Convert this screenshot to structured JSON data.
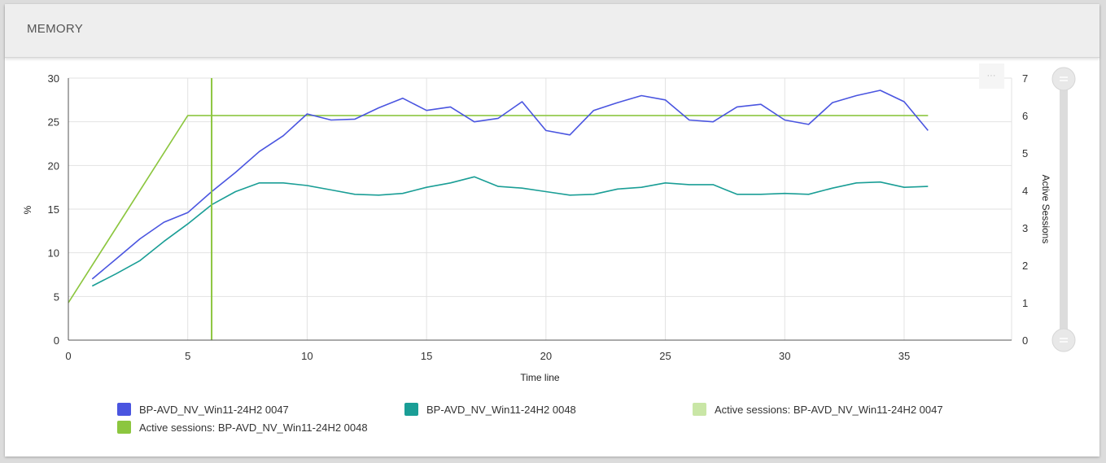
{
  "panel": {
    "title": "MEMORY",
    "menu_glyph": "···"
  },
  "chart_data": {
    "type": "line",
    "xlabel": "Time line",
    "ylabel": "%",
    "y2label": "Active Sessions",
    "xlim": [
      0,
      39.5
    ],
    "ylim": [
      0,
      30
    ],
    "y2lim": [
      0,
      7
    ],
    "xticks": [
      0,
      5,
      10,
      15,
      20,
      25,
      30,
      35
    ],
    "yticks": [
      0,
      5,
      10,
      15,
      20,
      25,
      30
    ],
    "y2ticks": [
      0,
      1,
      2,
      3,
      4,
      5,
      6,
      7
    ],
    "grid": true,
    "legend_position": "bottom",
    "cursor_x": 6,
    "series": [
      {
        "name": "BP-AVD_NV_Win11-24H2 0047",
        "axis": "left",
        "color": "#4a55e0",
        "x": [
          1,
          2,
          3,
          4,
          5,
          6,
          7,
          8,
          9,
          10,
          11,
          12,
          13,
          14,
          15,
          16,
          17,
          18,
          19,
          20,
          21,
          22,
          23,
          24,
          25,
          26,
          27,
          28,
          29,
          30,
          31,
          32,
          33,
          34,
          35,
          36
        ],
        "values": [
          7.0,
          9.3,
          11.6,
          13.5,
          14.6,
          17.0,
          19.2,
          21.6,
          23.4,
          25.9,
          25.2,
          25.3,
          26.6,
          27.7,
          26.3,
          26.7,
          25.0,
          25.4,
          27.3,
          24.0,
          23.5,
          26.3,
          27.2,
          28.0,
          27.5,
          25.2,
          25.0,
          26.7,
          27.0,
          25.2,
          24.7,
          27.2,
          28.0,
          28.6,
          27.3,
          24.0
        ]
      },
      {
        "name": "BP-AVD_NV_Win11-24H2 0048",
        "axis": "left",
        "color": "#1a9e96",
        "x": [
          1,
          2,
          3,
          4,
          5,
          6,
          7,
          8,
          9,
          10,
          11,
          12,
          13,
          14,
          15,
          16,
          17,
          18,
          19,
          20,
          21,
          22,
          23,
          24,
          25,
          26,
          27,
          28,
          29,
          30,
          31,
          32,
          33,
          34,
          35,
          36
        ],
        "values": [
          6.2,
          7.6,
          9.1,
          11.3,
          13.3,
          15.5,
          17.0,
          18.0,
          18.0,
          17.7,
          17.2,
          16.7,
          16.6,
          16.8,
          17.5,
          18.0,
          18.7,
          17.6,
          17.4,
          17.0,
          16.6,
          16.7,
          17.3,
          17.5,
          18.0,
          17.8,
          17.8,
          16.7,
          16.7,
          16.8,
          16.7,
          17.4,
          18.0,
          18.1,
          17.5,
          17.6
        ]
      },
      {
        "name": "Active sessions: BP-AVD_NV_Win11-24H2 0047",
        "axis": "right",
        "color": "#c9e6a6",
        "x": [
          0,
          5,
          36
        ],
        "values": [
          1,
          6,
          6
        ]
      },
      {
        "name": "Active sessions: BP-AVD_NV_Win11-24H2 0048",
        "axis": "right",
        "color": "#8cc63f",
        "x": [
          0,
          5,
          36
        ],
        "values": [
          1,
          6,
          6
        ]
      }
    ]
  }
}
